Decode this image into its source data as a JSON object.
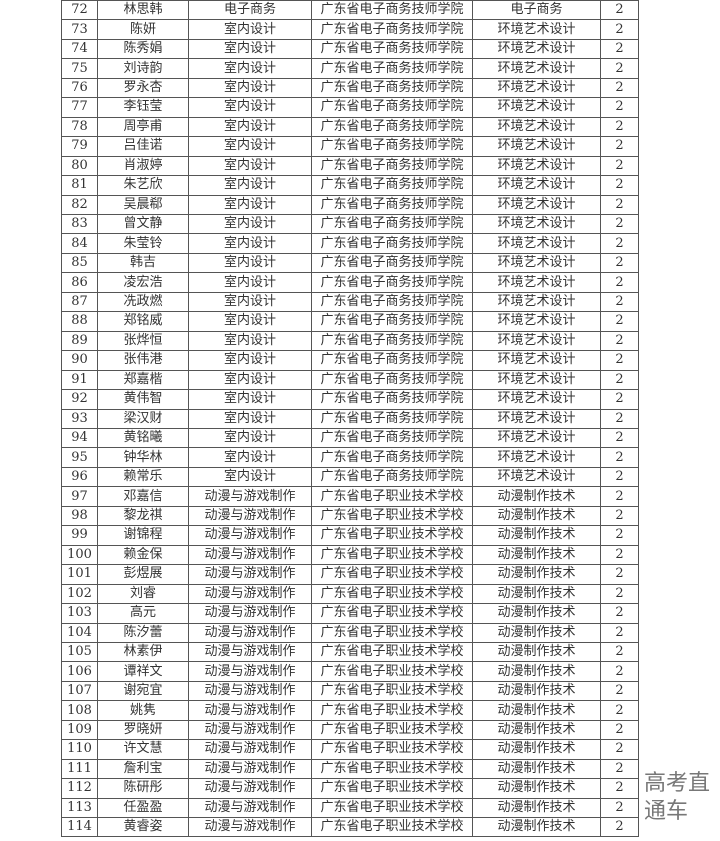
{
  "rows": [
    [
      "72",
      "林思韩",
      "电子商务",
      "广东省电子商务技师学院",
      "电子商务",
      "2"
    ],
    [
      "73",
      "陈妍",
      "室内设计",
      "广东省电子商务技师学院",
      "环境艺术设计",
      "2"
    ],
    [
      "74",
      "陈秀娟",
      "室内设计",
      "广东省电子商务技师学院",
      "环境艺术设计",
      "2"
    ],
    [
      "75",
      "刘诗韵",
      "室内设计",
      "广东省电子商务技师学院",
      "环境艺术设计",
      "2"
    ],
    [
      "76",
      "罗永杏",
      "室内设计",
      "广东省电子商务技师学院",
      "环境艺术设计",
      "2"
    ],
    [
      "77",
      "李钰莹",
      "室内设计",
      "广东省电子商务技师学院",
      "环境艺术设计",
      "2"
    ],
    [
      "78",
      "周亭甫",
      "室内设计",
      "广东省电子商务技师学院",
      "环境艺术设计",
      "2"
    ],
    [
      "79",
      "吕佳诺",
      "室内设计",
      "广东省电子商务技师学院",
      "环境艺术设计",
      "2"
    ],
    [
      "80",
      "肖淑婷",
      "室内设计",
      "广东省电子商务技师学院",
      "环境艺术设计",
      "2"
    ],
    [
      "81",
      "朱艺欣",
      "室内设计",
      "广东省电子商务技师学院",
      "环境艺术设计",
      "2"
    ],
    [
      "82",
      "吴晨郗",
      "室内设计",
      "广东省电子商务技师学院",
      "环境艺术设计",
      "2"
    ],
    [
      "83",
      "曾文静",
      "室内设计",
      "广东省电子商务技师学院",
      "环境艺术设计",
      "2"
    ],
    [
      "84",
      "朱莹铃",
      "室内设计",
      "广东省电子商务技师学院",
      "环境艺术设计",
      "2"
    ],
    [
      "85",
      "韩吉",
      "室内设计",
      "广东省电子商务技师学院",
      "环境艺术设计",
      "2"
    ],
    [
      "86",
      "凌宏浩",
      "室内设计",
      "广东省电子商务技师学院",
      "环境艺术设计",
      "2"
    ],
    [
      "87",
      "冼政燃",
      "室内设计",
      "广东省电子商务技师学院",
      "环境艺术设计",
      "2"
    ],
    [
      "88",
      "郑铭威",
      "室内设计",
      "广东省电子商务技师学院",
      "环境艺术设计",
      "2"
    ],
    [
      "89",
      "张烨恒",
      "室内设计",
      "广东省电子商务技师学院",
      "环境艺术设计",
      "2"
    ],
    [
      "90",
      "张伟港",
      "室内设计",
      "广东省电子商务技师学院",
      "环境艺术设计",
      "2"
    ],
    [
      "91",
      "郑嘉楷",
      "室内设计",
      "广东省电子商务技师学院",
      "环境艺术设计",
      "2"
    ],
    [
      "92",
      "黄伟智",
      "室内设计",
      "广东省电子商务技师学院",
      "环境艺术设计",
      "2"
    ],
    [
      "93",
      "梁汉财",
      "室内设计",
      "广东省电子商务技师学院",
      "环境艺术设计",
      "2"
    ],
    [
      "94",
      "黄铭曦",
      "室内设计",
      "广东省电子商务技师学院",
      "环境艺术设计",
      "2"
    ],
    [
      "95",
      "钟华林",
      "室内设计",
      "广东省电子商务技师学院",
      "环境艺术设计",
      "2"
    ],
    [
      "96",
      "赖常乐",
      "室内设计",
      "广东省电子商务技师学院",
      "环境艺术设计",
      "2"
    ],
    [
      "97",
      "邓嘉信",
      "动漫与游戏制作",
      "广东省电子职业技术学校",
      "动漫制作技术",
      "2"
    ],
    [
      "98",
      "黎龙祺",
      "动漫与游戏制作",
      "广东省电子职业技术学校",
      "动漫制作技术",
      "2"
    ],
    [
      "99",
      "谢锦程",
      "动漫与游戏制作",
      "广东省电子职业技术学校",
      "动漫制作技术",
      "2"
    ],
    [
      "100",
      "赖金保",
      "动漫与游戏制作",
      "广东省电子职业技术学校",
      "动漫制作技术",
      "2"
    ],
    [
      "101",
      "彭煜展",
      "动漫与游戏制作",
      "广东省电子职业技术学校",
      "动漫制作技术",
      "2"
    ],
    [
      "102",
      "刘睿",
      "动漫与游戏制作",
      "广东省电子职业技术学校",
      "动漫制作技术",
      "2"
    ],
    [
      "103",
      "高元",
      "动漫与游戏制作",
      "广东省电子职业技术学校",
      "动漫制作技术",
      "2"
    ],
    [
      "104",
      "陈汐蕾",
      "动漫与游戏制作",
      "广东省电子职业技术学校",
      "动漫制作技术",
      "2"
    ],
    [
      "105",
      "林素伊",
      "动漫与游戏制作",
      "广东省电子职业技术学校",
      "动漫制作技术",
      "2"
    ],
    [
      "106",
      "谭祥文",
      "动漫与游戏制作",
      "广东省电子职业技术学校",
      "动漫制作技术",
      "2"
    ],
    [
      "107",
      "谢宛宜",
      "动漫与游戏制作",
      "广东省电子职业技术学校",
      "动漫制作技术",
      "2"
    ],
    [
      "108",
      "姚隽",
      "动漫与游戏制作",
      "广东省电子职业技术学校",
      "动漫制作技术",
      "2"
    ],
    [
      "109",
      "罗晓妍",
      "动漫与游戏制作",
      "广东省电子职业技术学校",
      "动漫制作技术",
      "2"
    ],
    [
      "110",
      "许文慧",
      "动漫与游戏制作",
      "广东省电子职业技术学校",
      "动漫制作技术",
      "2"
    ],
    [
      "111",
      "詹利宝",
      "动漫与游戏制作",
      "广东省电子职业技术学校",
      "动漫制作技术",
      "2"
    ],
    [
      "112",
      "陈研彤",
      "动漫与游戏制作",
      "广东省电子职业技术学校",
      "动漫制作技术",
      "2"
    ],
    [
      "113",
      "任盈盈",
      "动漫与游戏制作",
      "广东省电子职业技术学校",
      "动漫制作技术",
      "2"
    ],
    [
      "114",
      "黄睿姿",
      "动漫与游戏制作",
      "广东省电子职业技术学校",
      "动漫制作技术",
      "2"
    ]
  ],
  "watermark": "高考直通车"
}
